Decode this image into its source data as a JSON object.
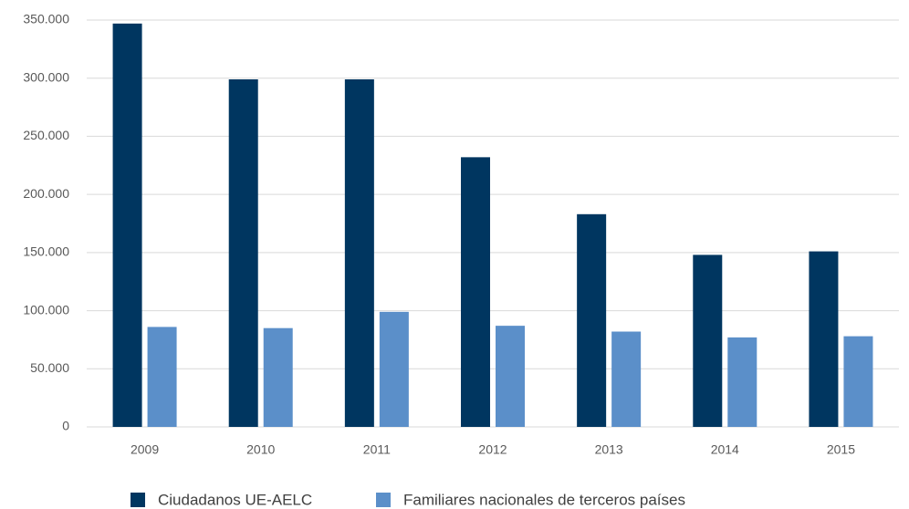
{
  "chart_data": {
    "type": "bar",
    "categories": [
      "2009",
      "2010",
      "2011",
      "2012",
      "2013",
      "2014",
      "2015"
    ],
    "series": [
      {
        "name": "Ciudadanos UE-AELC",
        "color": "#003660",
        "values": [
          347000,
          299000,
          299000,
          232000,
          183000,
          148000,
          151000
        ]
      },
      {
        "name": "Familiares nacionales de terceros países",
        "color": "#5b8fc9",
        "values": [
          86000,
          85000,
          99000,
          87000,
          82000,
          77000,
          78000
        ]
      }
    ],
    "ylim": [
      0,
      350000
    ],
    "yticks": [
      0,
      {
        "value": 50000,
        "label": "50.000"
      },
      {
        "value": 100000,
        "label": "100.000"
      },
      {
        "value": 150000,
        "label": "150.000"
      },
      {
        "value": 200000,
        "label": "200.000"
      },
      {
        "value": 250000,
        "label": "250.000"
      },
      {
        "value": 300000,
        "label": "300.000"
      },
      {
        "value": 350000,
        "label": "350.000"
      }
    ],
    "grid": true,
    "legend": "bottom"
  }
}
